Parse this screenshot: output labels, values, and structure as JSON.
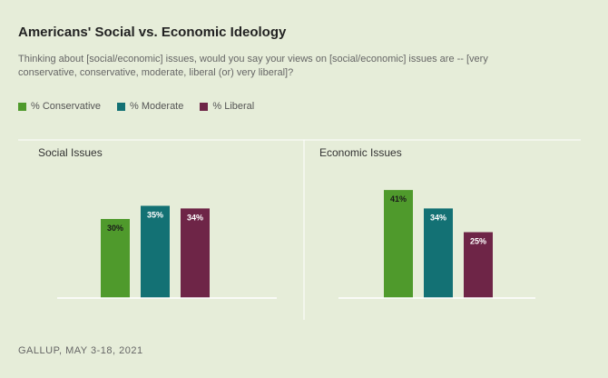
{
  "title": "Americans' Social vs. Economic Ideology",
  "subtitle": "Thinking about [social/economic] issues, would you say your views on [social/economic] issues are -- [very conservative, conservative, moderate, liberal (or) very liberal]?",
  "legend": [
    {
      "label": "% Conservative",
      "color": "#4f9a2c"
    },
    {
      "label": "% Moderate",
      "color": "#137174"
    },
    {
      "label": "% Liberal",
      "color": "#6e2547"
    }
  ],
  "source": "GALLUP, MAY 3-18, 2021",
  "chart_data": [
    {
      "type": "bar",
      "title": "Social Issues",
      "categories": [
        "% Conservative",
        "% Moderate",
        "% Liberal"
      ],
      "values": [
        30,
        35,
        34
      ],
      "labels": [
        "30%",
        "35%",
        "34%"
      ],
      "ylim": [
        0,
        50
      ]
    },
    {
      "type": "bar",
      "title": "Economic Issues",
      "categories": [
        "% Conservative",
        "% Moderate",
        "% Liberal"
      ],
      "values": [
        41,
        34,
        25
      ],
      "labels": [
        "41%",
        "34%",
        "25%"
      ],
      "ylim": [
        0,
        50
      ]
    }
  ]
}
